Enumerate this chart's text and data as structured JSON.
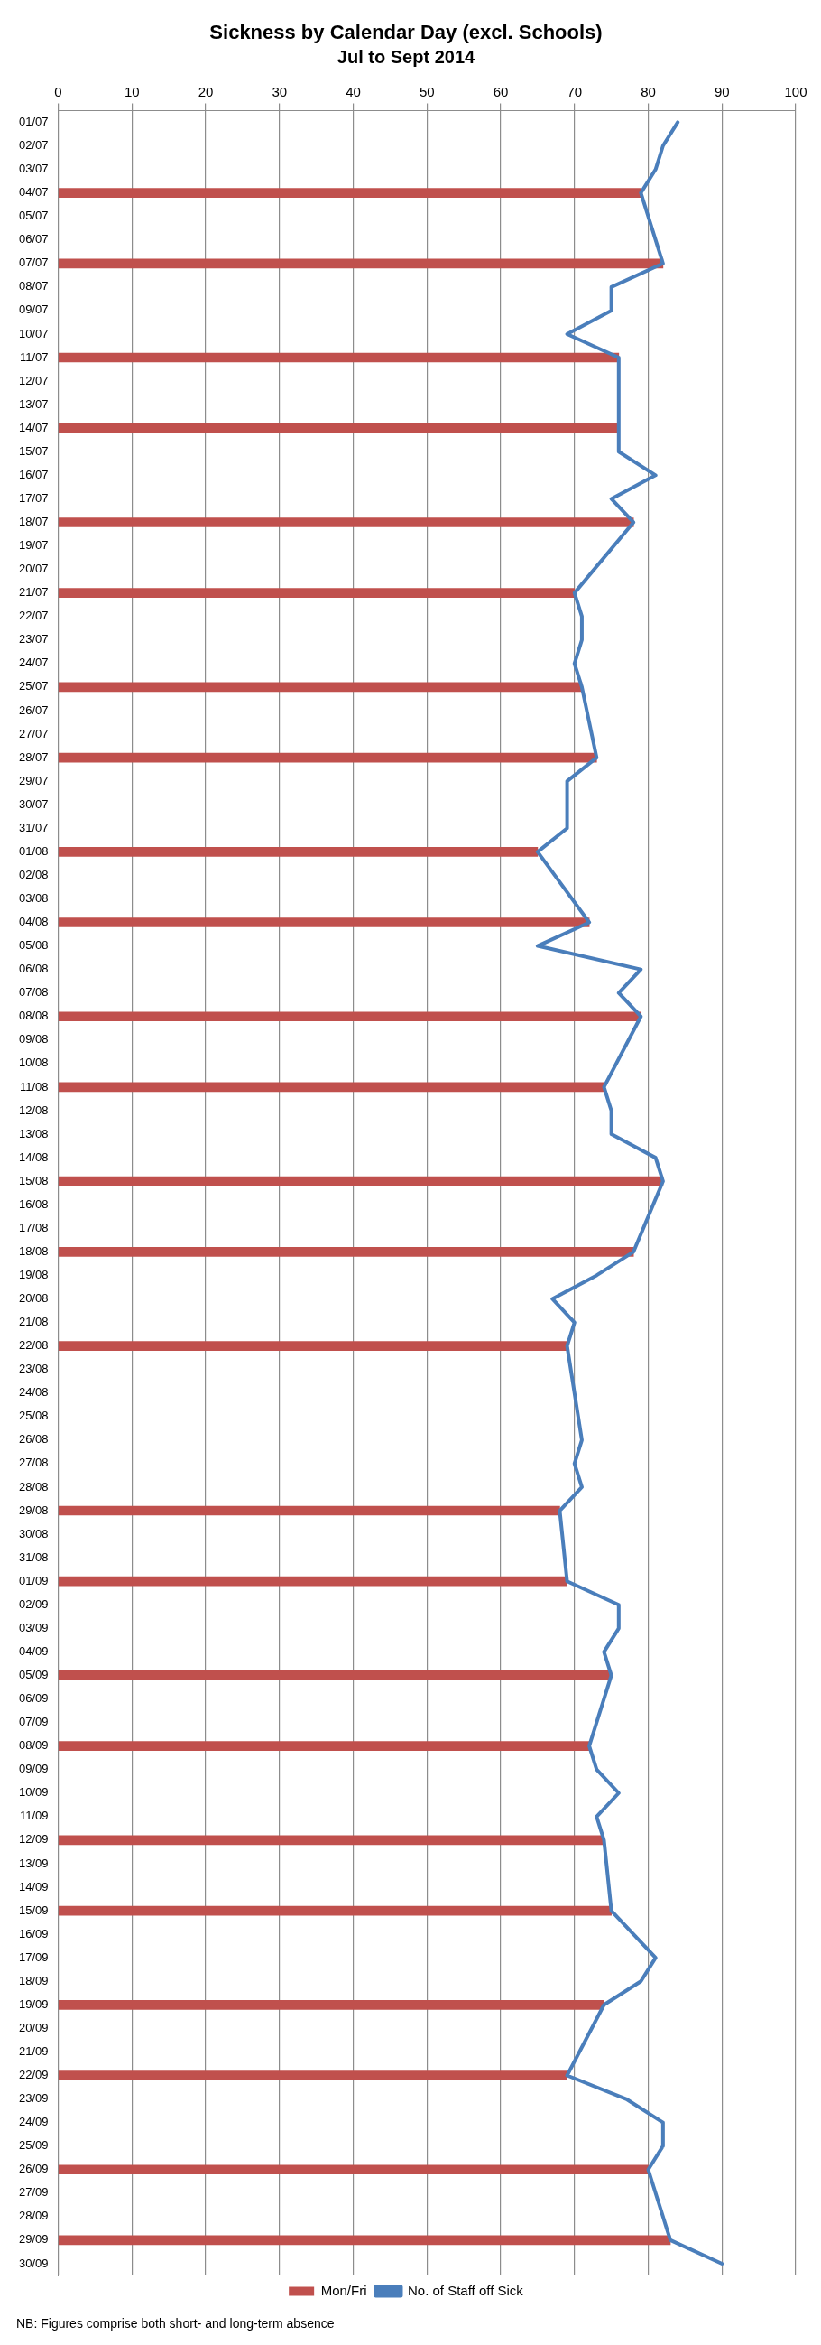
{
  "chart_data": {
    "type": "bar",
    "title": "Sickness by Calendar Day (excl. Schools)",
    "subtitle": "Jul to Sept 2014",
    "orientation": "horizontal",
    "categories": [
      "01/07",
      "02/07",
      "03/07",
      "04/07",
      "05/07",
      "06/07",
      "07/07",
      "08/07",
      "09/07",
      "10/07",
      "11/07",
      "12/07",
      "13/07",
      "14/07",
      "15/07",
      "16/07",
      "17/07",
      "18/07",
      "19/07",
      "20/07",
      "21/07",
      "22/07",
      "23/07",
      "24/07",
      "25/07",
      "26/07",
      "27/07",
      "28/07",
      "29/07",
      "30/07",
      "31/07",
      "01/08",
      "02/08",
      "03/08",
      "04/08",
      "05/08",
      "06/08",
      "07/08",
      "08/08",
      "09/08",
      "10/08",
      "11/08",
      "12/08",
      "13/08",
      "14/08",
      "15/08",
      "16/08",
      "17/08",
      "18/08",
      "19/08",
      "20/08",
      "21/08",
      "22/08",
      "23/08",
      "24/08",
      "25/08",
      "26/08",
      "27/08",
      "28/08",
      "29/08",
      "30/08",
      "31/08",
      "01/09",
      "02/09",
      "03/09",
      "04/09",
      "05/09",
      "06/09",
      "07/09",
      "08/09",
      "09/09",
      "10/09",
      "11/09",
      "12/09",
      "13/09",
      "14/09",
      "15/09",
      "16/09",
      "17/09",
      "18/09",
      "19/09",
      "20/09",
      "21/09",
      "22/09",
      "23/09",
      "24/09",
      "25/09",
      "26/09",
      "27/09",
      "28/09",
      "29/09",
      "30/09"
    ],
    "series": [
      {
        "name": "Mon/Fri",
        "color": "#c0504d",
        "values": [
          null,
          null,
          null,
          79,
          null,
          null,
          82,
          null,
          null,
          null,
          76,
          null,
          null,
          76,
          null,
          null,
          null,
          78,
          null,
          null,
          70,
          null,
          null,
          null,
          71,
          null,
          null,
          73,
          null,
          null,
          null,
          65,
          null,
          null,
          72,
          null,
          null,
          null,
          79,
          null,
          null,
          74,
          null,
          null,
          null,
          82,
          null,
          null,
          78,
          null,
          null,
          null,
          69,
          null,
          null,
          null,
          null,
          null,
          null,
          68,
          null,
          null,
          69,
          null,
          null,
          null,
          75,
          null,
          null,
          72,
          null,
          null,
          null,
          74,
          null,
          null,
          75,
          null,
          null,
          null,
          74,
          null,
          null,
          69,
          null,
          null,
          null,
          80,
          null,
          null,
          83,
          null
        ]
      },
      {
        "name": "No. of Staff off Sick",
        "type": "line",
        "color": "#4a7ebb",
        "values": [
          84,
          82,
          81,
          79,
          null,
          null,
          82,
          75,
          75,
          69,
          76,
          null,
          null,
          76,
          76,
          81,
          75,
          78,
          null,
          null,
          70,
          71,
          71,
          70,
          71,
          null,
          null,
          73,
          69,
          69,
          69,
          65,
          null,
          null,
          72,
          65,
          79,
          76,
          79,
          null,
          null,
          74,
          75,
          75,
          81,
          82,
          null,
          null,
          78,
          73,
          67,
          70,
          69,
          null,
          null,
          null,
          71,
          70,
          71,
          68,
          null,
          null,
          69,
          76,
          76,
          74,
          75,
          null,
          null,
          72,
          73,
          76,
          73,
          74,
          null,
          null,
          75,
          78,
          81,
          79,
          74,
          null,
          null,
          69,
          77,
          82,
          82,
          80,
          null,
          null,
          83,
          90
        ]
      }
    ],
    "xlim": [
      0,
      100
    ],
    "xticks": [
      0,
      10,
      20,
      30,
      40,
      50,
      60,
      70,
      80,
      90,
      100
    ],
    "grid": "x",
    "legend": "bottom",
    "marker": "none",
    "line_style": "solid",
    "annotations": [
      "NB: Figures comprise both short- and long-term absence"
    ]
  }
}
